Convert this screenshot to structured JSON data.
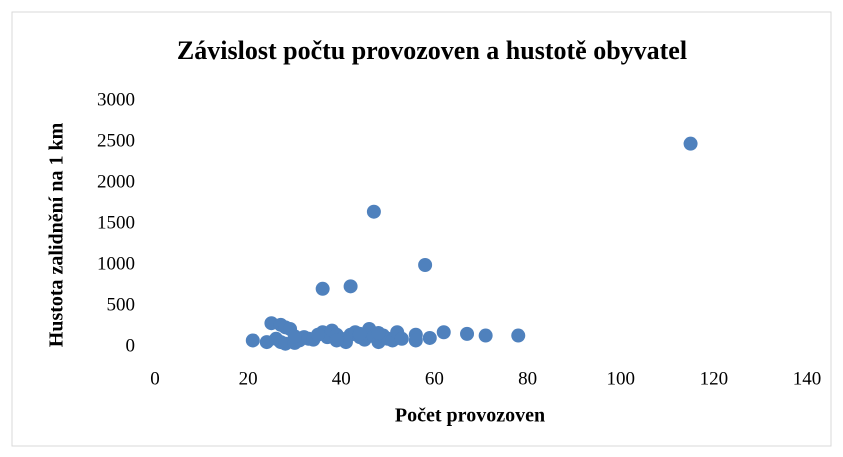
{
  "chart_data": {
    "type": "scatter",
    "title": "Závislost počtu provozoven a hustotě obyvatel",
    "x_label": "Počet provozoven",
    "y_label": "Hustota zalidnění na 1 km",
    "color": "#4f81bd",
    "xlim": [
      0,
      140
    ],
    "xticks": [
      0,
      20,
      40,
      60,
      80,
      100,
      120,
      140
    ],
    "ylim": [
      0,
      3000
    ],
    "yticks": [
      0,
      500,
      1000,
      1500,
      2000,
      2500,
      3000
    ],
    "x": [
      115,
      47,
      58,
      42,
      36,
      21,
      24,
      25,
      27,
      28,
      29,
      26,
      27,
      28,
      30,
      31,
      32,
      33,
      34,
      36,
      37,
      38,
      39,
      40,
      41,
      42,
      43,
      44,
      45,
      46,
      47,
      48,
      49,
      50,
      51,
      52,
      53,
      56,
      56,
      59,
      62,
      67,
      71,
      78,
      35,
      30,
      39,
      44,
      48
    ],
    "y": [
      2480,
      1650,
      1000,
      740,
      710,
      80,
      60,
      290,
      270,
      240,
      220,
      100,
      60,
      40,
      50,
      80,
      120,
      100,
      90,
      180,
      120,
      200,
      150,
      100,
      60,
      150,
      180,
      120,
      90,
      220,
      130,
      60,
      140,
      100,
      80,
      180,
      100,
      150,
      80,
      110,
      180,
      160,
      140,
      140,
      150,
      130,
      80,
      160,
      170
    ]
  }
}
